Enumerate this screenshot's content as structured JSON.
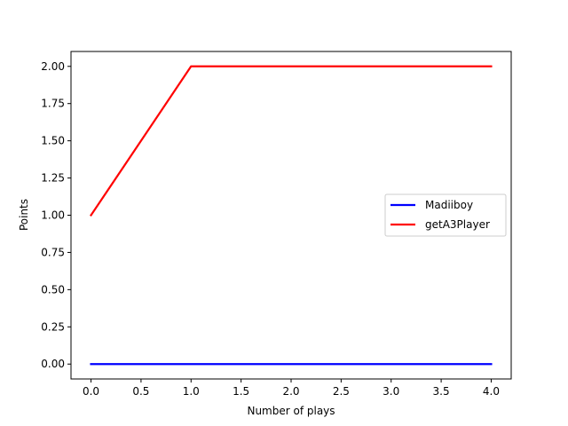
{
  "chart_data": {
    "type": "line",
    "title": "",
    "xlabel": "Number of plays",
    "ylabel": "Points",
    "x": [
      0,
      1,
      2,
      3,
      4
    ],
    "series": [
      {
        "name": "Madiiboy",
        "color": "#0000ff",
        "values": [
          0,
          0,
          0,
          0,
          0
        ]
      },
      {
        "name": "getA3Player",
        "color": "#ff0000",
        "values": [
          1,
          2,
          2,
          2,
          2
        ]
      }
    ],
    "xlim": [
      -0.2,
      4.2
    ],
    "ylim": [
      -0.1,
      2.1
    ],
    "xticks": [
      0.0,
      0.5,
      1.0,
      1.5,
      2.0,
      2.5,
      3.0,
      3.5,
      4.0
    ],
    "xtick_labels": [
      "0.0",
      "0.5",
      "1.0",
      "1.5",
      "2.0",
      "2.5",
      "3.0",
      "3.5",
      "4.0"
    ],
    "yticks": [
      0.0,
      0.25,
      0.5,
      0.75,
      1.0,
      1.25,
      1.5,
      1.75,
      2.0
    ],
    "ytick_labels": [
      "0.00",
      "0.25",
      "0.50",
      "0.75",
      "1.00",
      "1.25",
      "1.50",
      "1.75",
      "2.00"
    ],
    "grid": false,
    "legend_position": "center-right"
  }
}
